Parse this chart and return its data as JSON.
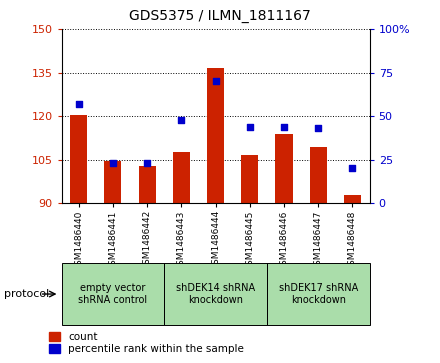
{
  "title": "GDS5375 / ILMN_1811167",
  "samples": [
    "GSM1486440",
    "GSM1486441",
    "GSM1486442",
    "GSM1486443",
    "GSM1486444",
    "GSM1486445",
    "GSM1486446",
    "GSM1486447",
    "GSM1486448"
  ],
  "counts": [
    120.5,
    104.5,
    103.0,
    107.5,
    136.5,
    106.5,
    114.0,
    109.5,
    93.0
  ],
  "percentiles": [
    57,
    23,
    23,
    48,
    70,
    44,
    44,
    43,
    20
  ],
  "ylim_left": [
    90,
    150
  ],
  "ylim_right": [
    0,
    100
  ],
  "yticks_left": [
    90,
    105,
    120,
    135,
    150
  ],
  "yticks_right": [
    0,
    25,
    50,
    75,
    100
  ],
  "bar_color": "#cc2200",
  "dot_color": "#0000cc",
  "protocols": [
    {
      "label": "empty vector\nshRNA control",
      "start": 0,
      "end": 3,
      "color": "#aaddaa"
    },
    {
      "label": "shDEK14 shRNA\nknockdown",
      "start": 3,
      "end": 6,
      "color": "#aaddaa"
    },
    {
      "label": "shDEK17 shRNA\nknockdown",
      "start": 6,
      "end": 9,
      "color": "#aaddaa"
    }
  ],
  "protocol_label": "protocol",
  "legend_count": "count",
  "legend_percentile": "percentile rank within the sample",
  "bar_width": 0.5,
  "dot_size": 25
}
